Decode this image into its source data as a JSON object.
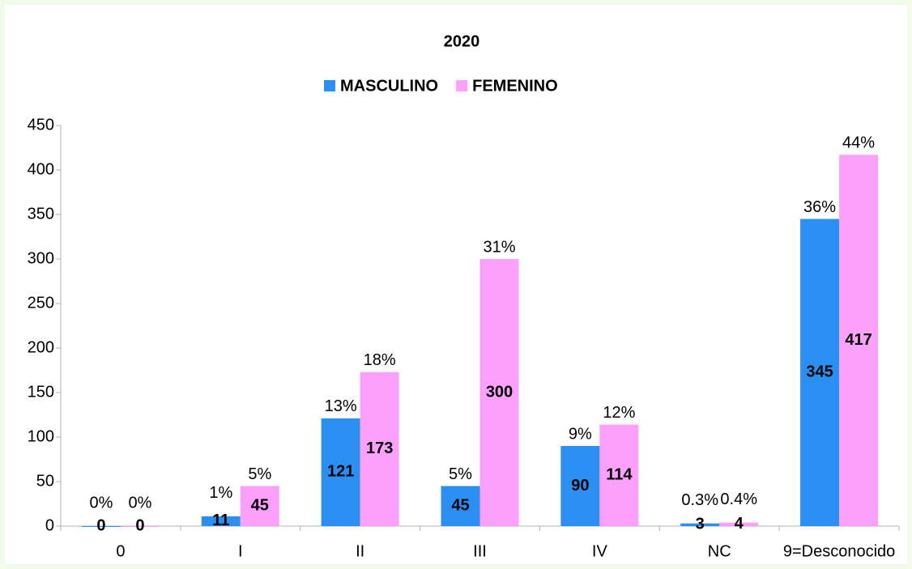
{
  "chart_data": {
    "type": "bar",
    "title": "2020",
    "categories": [
      "0",
      "I",
      "II",
      "III",
      "IV",
      "NC",
      "9=Desconocido"
    ],
    "series": [
      {
        "name": "MASCULINO",
        "color": "#2b8ff2",
        "values": [
          0,
          11,
          121,
          45,
          90,
          3,
          345
        ],
        "percent_labels": [
          "0%",
          "1%",
          "13%",
          "5%",
          "9%",
          "0.3%",
          "36%"
        ]
      },
      {
        "name": "FEMENINO",
        "color": "#fba0fb",
        "values": [
          0,
          45,
          173,
          300,
          114,
          4,
          417
        ],
        "percent_labels": [
          "0%",
          "5%",
          "18%",
          "31%",
          "12%",
          "0.4%",
          "44%"
        ]
      }
    ],
    "ylim": [
      0,
      450
    ],
    "yticks": [
      0,
      50,
      100,
      150,
      200,
      250,
      300,
      350,
      400,
      450
    ],
    "grid": false,
    "legend": "top"
  }
}
